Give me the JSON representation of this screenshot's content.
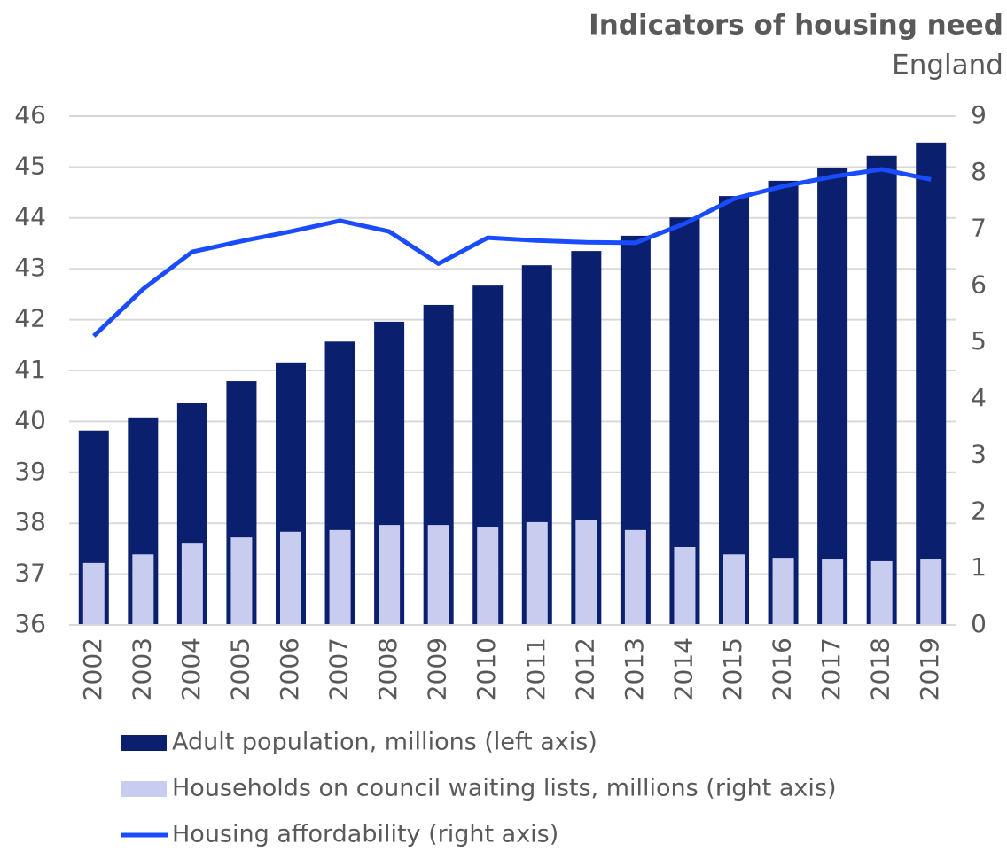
{
  "chart_data": {
    "type": "bar",
    "title": "Indicators of housing need",
    "subtitle": "England",
    "categories": [
      "2002",
      "2003",
      "2004",
      "2005",
      "2006",
      "2007",
      "2008",
      "2009",
      "2010",
      "2011",
      "2012",
      "2013",
      "2014",
      "2015",
      "2016",
      "2017",
      "2018",
      "2019"
    ],
    "series": [
      {
        "name": "Adult population, millions (left axis)",
        "type": "bar",
        "axis": "y",
        "color": "#0a1f6e",
        "values": [
          39.82,
          40.08,
          40.37,
          40.79,
          41.16,
          41.57,
          41.96,
          42.29,
          42.67,
          43.07,
          43.35,
          43.65,
          44.01,
          44.43,
          44.73,
          44.99,
          45.22,
          45.48
        ]
      },
      {
        "name": "Households on council waiting lists, millions (right axis)",
        "type": "bar",
        "axis": "y2",
        "color": "#c8cdef",
        "values": [
          1.1,
          1.25,
          1.44,
          1.55,
          1.65,
          1.68,
          1.77,
          1.77,
          1.74,
          1.82,
          1.85,
          1.68,
          1.38,
          1.25,
          1.19,
          1.16,
          1.13,
          1.16
        ]
      },
      {
        "name": "Housing affordability (right axis)",
        "type": "line",
        "axis": "y2",
        "color": "#1a4cff",
        "values": [
          5.11,
          5.94,
          6.6,
          6.79,
          6.96,
          7.15,
          6.96,
          6.39,
          6.85,
          6.8,
          6.77,
          6.76,
          7.1,
          7.54,
          7.76,
          7.93,
          8.06,
          7.88
        ]
      }
    ],
    "ylim": [
      36,
      46
    ],
    "yticks": [
      36,
      37,
      38,
      39,
      40,
      41,
      42,
      43,
      44,
      45,
      46
    ],
    "y2lim": [
      0,
      9
    ],
    "y2ticks": [
      0,
      1,
      2,
      3,
      4,
      5,
      6,
      7,
      8,
      9
    ],
    "grid": true
  }
}
